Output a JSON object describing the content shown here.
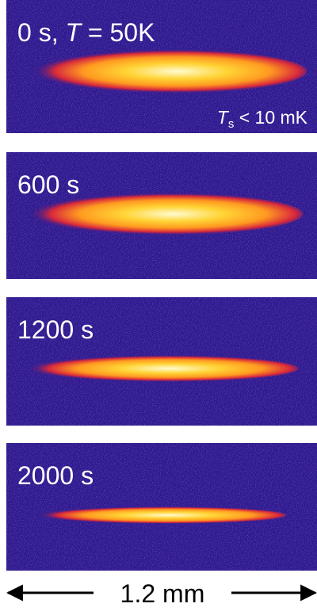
{
  "panels": [
    {
      "label": [
        "0 s, ",
        "T",
        " = 50K"
      ],
      "note": [
        "T",
        "s",
        " < 10 mK"
      ]
    },
    {
      "label": [
        "600 s"
      ]
    },
    {
      "label": [
        "1200 s"
      ]
    },
    {
      "label": [
        "2000 s"
      ]
    }
  ],
  "scale_bar": "1.2 mm"
}
